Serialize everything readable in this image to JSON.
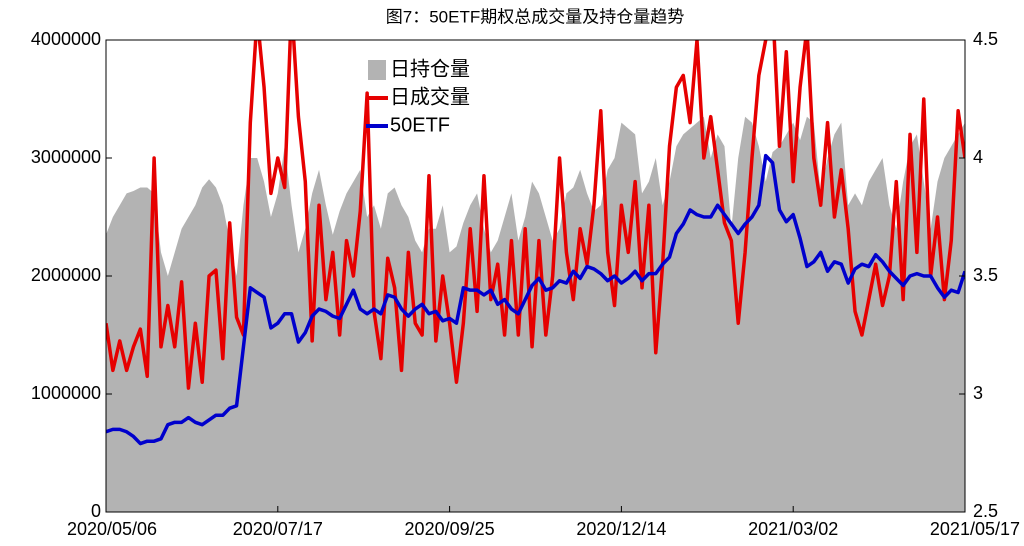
{
  "chart_data": {
    "type": "line",
    "title": "图7：50ETF期权总成交量及持仓量趋势",
    "categories": [
      "2020/05/06",
      null,
      null,
      null,
      null,
      null,
      null,
      null,
      null,
      null,
      null,
      null,
      null,
      null,
      null,
      null,
      null,
      null,
      null,
      null,
      null,
      null,
      null,
      null,
      null,
      "2020/07/17",
      null,
      null,
      null,
      null,
      null,
      null,
      null,
      null,
      null,
      null,
      null,
      null,
      null,
      null,
      null,
      null,
      null,
      null,
      null,
      null,
      null,
      null,
      null,
      null,
      "2020/09/25",
      null,
      null,
      null,
      null,
      null,
      null,
      null,
      null,
      null,
      null,
      null,
      null,
      null,
      null,
      null,
      null,
      null,
      null,
      null,
      null,
      null,
      null,
      null,
      null,
      "2020/12/14",
      null,
      null,
      null,
      null,
      null,
      null,
      null,
      null,
      null,
      null,
      null,
      null,
      null,
      null,
      null,
      null,
      null,
      null,
      null,
      null,
      null,
      null,
      null,
      null,
      "2021/03/02",
      null,
      null,
      null,
      null,
      null,
      null,
      null,
      null,
      null,
      null,
      null,
      null,
      null,
      null,
      null,
      null,
      null,
      null,
      null,
      null,
      null,
      null,
      null,
      null,
      "2021/05/17"
    ],
    "series": [
      {
        "name": "日持仓量",
        "type": "area",
        "color": "#b3b3b3",
        "values": [
          2350000,
          2500000,
          2600000,
          2700000,
          2720000,
          2750000,
          2750000,
          2700000,
          2200000,
          2000000,
          2200000,
          2400000,
          2500000,
          2600000,
          2750000,
          2820000,
          2750000,
          2600000,
          2300000,
          2000000,
          2600000,
          3000000,
          3000000,
          2800000,
          2500000,
          2700000,
          3100000,
          2600000,
          2200000,
          2400000,
          2700000,
          2900000,
          2600000,
          2350000,
          2550000,
          2700000,
          2800000,
          2900000,
          2500000,
          2600000,
          2400000,
          2700000,
          2750000,
          2600000,
          2500000,
          2300000,
          2200000,
          2400000,
          2400000,
          2600000,
          2200000,
          2250000,
          2450000,
          2600000,
          2700000,
          2400000,
          2200000,
          2300000,
          2500000,
          2700000,
          2300000,
          2500000,
          2800000,
          2700000,
          2500000,
          2300000,
          2400000,
          2700000,
          2750000,
          2900000,
          2700000,
          2550000,
          2600000,
          2900000,
          3000000,
          3300000,
          3250000,
          3200000,
          2700000,
          2800000,
          3000000,
          2600000,
          2800000,
          3100000,
          3200000,
          3250000,
          3300000,
          3350000,
          3000000,
          3200000,
          3100000,
          2400000,
          3000000,
          3350000,
          3300000,
          3100000,
          2800000,
          3050000,
          3100000,
          3200000,
          3300000,
          3150000,
          3350000,
          3300000,
          2700000,
          3000000,
          3200000,
          3300000,
          2600000,
          2700000,
          2600000,
          2800000,
          2900000,
          3000000,
          2600000,
          2400000,
          2800000,
          3100000,
          3200000,
          2800000,
          2400000,
          2800000,
          3000000,
          3100000,
          3200000,
          3300000
        ]
      },
      {
        "name": "日成交量",
        "color": "#e60000",
        "values": [
          1600000,
          1200000,
          1450000,
          1200000,
          1400000,
          1550000,
          1150000,
          3000000,
          1400000,
          1750000,
          1400000,
          1950000,
          1050000,
          1600000,
          1100000,
          2000000,
          2050000,
          1300000,
          2450000,
          1650000,
          1500000,
          3300000,
          4200000,
          3600000,
          2700000,
          3000000,
          2750000,
          4300000,
          3350000,
          2800000,
          1450000,
          2600000,
          1800000,
          2200000,
          1500000,
          2300000,
          2000000,
          2550000,
          3550000,
          1700000,
          1300000,
          2150000,
          1900000,
          1200000,
          2200000,
          1600000,
          1500000,
          2850000,
          1450000,
          2000000,
          1600000,
          1100000,
          1600000,
          2400000,
          1700000,
          2850000,
          1800000,
          2100000,
          1500000,
          2300000,
          1500000,
          2400000,
          1400000,
          2300000,
          1500000,
          2000000,
          3000000,
          2200000,
          1800000,
          2400000,
          2100000,
          2600000,
          3400000,
          2200000,
          1750000,
          2600000,
          2200000,
          2800000,
          1900000,
          2600000,
          1350000,
          2100000,
          3100000,
          3600000,
          3700000,
          3300000,
          4000000,
          3000000,
          3350000,
          2900000,
          2450000,
          2300000,
          1600000,
          2200000,
          3000000,
          3700000,
          4000000,
          4300000,
          3100000,
          3900000,
          2800000,
          3600000,
          4100000,
          3000000,
          2600000,
          3300000,
          2500000,
          2900000,
          2400000,
          1700000,
          1500000,
          1800000,
          2100000,
          1750000,
          2000000,
          2800000,
          1800000,
          3200000,
          2200000,
          3500000,
          2000000,
          2500000,
          1800000,
          2300000,
          3400000,
          3000000
        ]
      },
      {
        "name": "50ETF",
        "axis": "y2",
        "color": "#0000cc",
        "values": [
          2.84,
          2.85,
          2.85,
          2.84,
          2.82,
          2.79,
          2.8,
          2.8,
          2.81,
          2.87,
          2.88,
          2.88,
          2.9,
          2.88,
          2.87,
          2.89,
          2.91,
          2.91,
          2.94,
          2.95,
          3.2,
          3.45,
          3.43,
          3.41,
          3.28,
          3.3,
          3.34,
          3.34,
          3.22,
          3.26,
          3.33,
          3.36,
          3.35,
          3.33,
          3.32,
          3.38,
          3.44,
          3.36,
          3.34,
          3.36,
          3.34,
          3.42,
          3.41,
          3.36,
          3.33,
          3.36,
          3.38,
          3.34,
          3.35,
          3.31,
          3.32,
          3.3,
          3.45,
          3.44,
          3.44,
          3.42,
          3.44,
          3.38,
          3.4,
          3.36,
          3.34,
          3.4,
          3.46,
          3.49,
          3.44,
          3.45,
          3.48,
          3.47,
          3.52,
          3.49,
          3.54,
          3.53,
          3.51,
          3.48,
          3.5,
          3.47,
          3.49,
          3.52,
          3.48,
          3.51,
          3.51,
          3.55,
          3.58,
          3.68,
          3.72,
          3.78,
          3.76,
          3.75,
          3.75,
          3.8,
          3.76,
          3.72,
          3.68,
          3.72,
          3.75,
          3.8,
          4.01,
          3.98,
          3.78,
          3.73,
          3.76,
          3.66,
          3.54,
          3.56,
          3.6,
          3.52,
          3.56,
          3.55,
          3.47,
          3.53,
          3.55,
          3.54,
          3.59,
          3.56,
          3.52,
          3.49,
          3.46,
          3.5,
          3.51,
          3.5,
          3.5,
          3.45,
          3.41,
          3.44,
          3.43,
          3.52
        ]
      }
    ],
    "ylim": [
      0,
      4000000
    ],
    "yticks": [
      0,
      1000000,
      2000000,
      3000000,
      4000000
    ],
    "y2lim": [
      2.5,
      4.5
    ],
    "y2ticks": [
      2.5,
      3,
      3.5,
      4,
      4.5
    ],
    "legend": "upper-left"
  }
}
